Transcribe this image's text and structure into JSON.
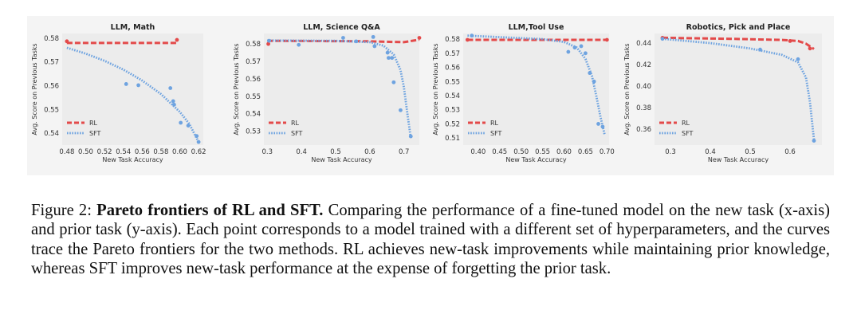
{
  "colors": {
    "rl": "#e34a4a",
    "sft": "#6ea3e0",
    "background": "#f4f4f4"
  },
  "caption": {
    "label": "Figure 2:",
    "bold_title": "Pareto frontiers of RL and SFT.",
    "text": "Comparing the performance of a fine-tuned model on the new task (x-axis) and prior task (y-axis). Each point corresponds to a model trained with a different set of hyperparameters, and the curves trace the Pareto frontiers for the two methods. RL achieves new-task improvements while maintaining prior knowledge, whereas SFT improves new-task performance at the expense of forgetting the prior task."
  },
  "chart_data": [
    {
      "type": "scatter",
      "title": "LLM, Math",
      "xlabel": "New Task Accuracy",
      "ylabel": "Avg. Score on Previous Tasks",
      "xlim": [
        0.475,
        0.625
      ],
      "ylim": [
        0.535,
        0.582
      ],
      "xticks": [
        "0.48",
        "0.50",
        "0.52",
        "0.54",
        "0.56",
        "0.58",
        "0.60",
        "0.62"
      ],
      "xtick_values": [
        0.48,
        0.5,
        0.52,
        0.54,
        0.56,
        0.58,
        0.6,
        0.62
      ],
      "yticks": [
        "0.58",
        "0.57",
        "0.56",
        "0.55",
        "0.54"
      ],
      "ytick_values": [
        0.58,
        0.57,
        0.56,
        0.55,
        0.54
      ],
      "legend": {
        "position": "lower-left",
        "entries": [
          "RL",
          "SFT"
        ]
      },
      "series": [
        {
          "name": "RL",
          "points": [
            [
              0.48,
              0.5787
            ],
            [
              0.597,
              0.5793
            ]
          ],
          "curve": [
            [
              0.48,
              0.578
            ],
            [
              0.597,
              0.578
            ]
          ]
        },
        {
          "name": "SFT",
          "points": [
            [
              0.543,
              0.5607
            ],
            [
              0.556,
              0.5602
            ],
            [
              0.59,
              0.559
            ],
            [
              0.593,
              0.5535
            ],
            [
              0.594,
              0.552
            ],
            [
              0.601,
              0.5444
            ],
            [
              0.609,
              0.5432
            ],
            [
              0.618,
              0.5388
            ],
            [
              0.62,
              0.5363
            ]
          ],
          "curve": [
            [
              0.48,
              0.576
            ],
            [
              0.5,
              0.5735
            ],
            [
              0.52,
              0.5705
            ],
            [
              0.54,
              0.5668
            ],
            [
              0.56,
              0.5622
            ],
            [
              0.58,
              0.5565
            ],
            [
              0.6,
              0.549
            ],
            [
              0.61,
              0.544
            ],
            [
              0.62,
              0.5363
            ]
          ]
        }
      ]
    },
    {
      "type": "scatter",
      "title": "LLM, Science Q&A",
      "xlabel": "New Task Accuracy",
      "ylabel": "Avg. Score on Previous Tasks",
      "xlim": [
        0.29,
        0.745
      ],
      "ylim": [
        0.522,
        0.586
      ],
      "xticks": [
        "0.3",
        "0.4",
        "0.5",
        "0.6",
        "0.7"
      ],
      "xtick_values": [
        0.3,
        0.4,
        0.5,
        0.6,
        0.7
      ],
      "yticks": [
        "0.58",
        "0.57",
        "0.56",
        "0.55",
        "0.54",
        "0.53"
      ],
      "ytick_values": [
        0.58,
        0.57,
        0.56,
        0.55,
        0.54,
        0.53
      ],
      "legend": {
        "position": "lower-left",
        "entries": [
          "RL",
          "SFT"
        ]
      },
      "series": [
        {
          "name": "RL",
          "points": [
            [
              0.303,
              0.58
            ],
            [
              0.745,
              0.5835
            ]
          ],
          "curve": [
            [
              0.3,
              0.5818
            ],
            [
              0.59,
              0.5815
            ],
            [
              0.7,
              0.581
            ],
            [
              0.745,
              0.5825
            ]
          ]
        },
        {
          "name": "SFT",
          "points": [
            [
              0.305,
              0.5818
            ],
            [
              0.392,
              0.5795
            ],
            [
              0.522,
              0.5835
            ],
            [
              0.56,
              0.5815
            ],
            [
              0.61,
              0.584
            ],
            [
              0.614,
              0.5787
            ],
            [
              0.652,
              0.575
            ],
            [
              0.655,
              0.572
            ],
            [
              0.665,
              0.572
            ],
            [
              0.67,
              0.558
            ],
            [
              0.69,
              0.542
            ],
            [
              0.72,
              0.527
            ]
          ],
          "curve": [
            [
              0.3,
              0.582
            ],
            [
              0.5,
              0.5818
            ],
            [
              0.6,
              0.581
            ],
            [
              0.64,
              0.579
            ],
            [
              0.67,
              0.574
            ],
            [
              0.69,
              0.565
            ],
            [
              0.7,
              0.555
            ],
            [
              0.71,
              0.54
            ],
            [
              0.72,
              0.526
            ]
          ]
        }
      ]
    },
    {
      "type": "scatter",
      "title": "LLM,Tool Use",
      "xlabel": "New Task Accuracy",
      "ylabel": "Avg. Score on Previous Tasks",
      "xlim": [
        0.365,
        0.705
      ],
      "ylim": [
        0.505,
        0.584
      ],
      "xticks": [
        "0.40",
        "0.45",
        "0.50",
        "0.55",
        "0.60",
        "0.65",
        "0.70"
      ],
      "xtick_values": [
        0.4,
        0.45,
        0.5,
        0.55,
        0.6,
        0.65,
        0.7
      ],
      "yticks": [
        "0.58",
        "0.57",
        "0.56",
        "0.55",
        "0.54",
        "0.53",
        "0.52",
        "0.51"
      ],
      "ytick_values": [
        0.58,
        0.57,
        0.56,
        0.55,
        0.54,
        0.53,
        0.52,
        0.51
      ],
      "legend": {
        "position": "lower-left",
        "entries": [
          "RL",
          "SFT"
        ]
      },
      "series": [
        {
          "name": "RL",
          "points": [
            [
              0.375,
              0.5795
            ],
            [
              0.7,
              0.5795
            ]
          ],
          "curve": [
            [
              0.375,
              0.5795
            ],
            [
              0.7,
              0.5795
            ]
          ]
        },
        {
          "name": "SFT",
          "points": [
            [
              0.385,
              0.5825
            ],
            [
              0.61,
              0.571
            ],
            [
              0.625,
              0.574
            ],
            [
              0.64,
              0.575
            ],
            [
              0.65,
              0.57
            ],
            [
              0.66,
              0.556
            ],
            [
              0.67,
              0.55
            ],
            [
              0.68,
              0.52
            ],
            [
              0.69,
              0.518
            ]
          ],
          "curve": [
            [
              0.375,
              0.5825
            ],
            [
              0.55,
              0.58
            ],
            [
              0.6,
              0.578
            ],
            [
              0.63,
              0.574
            ],
            [
              0.65,
              0.566
            ],
            [
              0.665,
              0.554
            ],
            [
              0.675,
              0.54
            ],
            [
              0.685,
              0.525
            ],
            [
              0.695,
              0.512
            ]
          ]
        }
      ]
    },
    {
      "type": "scatter",
      "title": "Robotics, Pick and Place",
      "xlabel": "New Task Accuracy",
      "ylabel": "Avg. Score on Previous Tasks",
      "xlim": [
        0.26,
        0.68
      ],
      "ylim": [
        0.345,
        0.449
      ],
      "xticks": [
        "0.3",
        "0.4",
        "0.5",
        "0.6"
      ],
      "xtick_values": [
        0.3,
        0.4,
        0.5,
        0.6
      ],
      "yticks": [
        "0.44",
        "0.42",
        "0.40",
        "0.38",
        "0.36"
      ],
      "ytick_values": [
        0.44,
        0.42,
        0.4,
        0.38,
        0.36
      ],
      "legend": {
        "position": "lower-left",
        "entries": [
          "RL",
          "SFT"
        ]
      },
      "series": [
        {
          "name": "RL",
          "points": [
            [
              0.28,
              0.445
            ],
            [
              0.6,
              0.442
            ],
            [
              0.65,
              0.435
            ]
          ],
          "curve": [
            [
              0.28,
              0.445
            ],
            [
              0.45,
              0.444
            ],
            [
              0.58,
              0.443
            ],
            [
              0.62,
              0.442
            ],
            [
              0.64,
              0.4395
            ],
            [
              0.66,
              0.4345
            ]
          ]
        },
        {
          "name": "SFT",
          "points": [
            [
              0.28,
              0.444
            ],
            [
              0.525,
              0.434
            ],
            [
              0.62,
              0.425
            ],
            [
              0.66,
              0.349
            ]
          ],
          "curve": [
            [
              0.28,
              0.444
            ],
            [
              0.4,
              0.44
            ],
            [
              0.5,
              0.435
            ],
            [
              0.58,
              0.429
            ],
            [
              0.62,
              0.422
            ],
            [
              0.64,
              0.408
            ],
            [
              0.65,
              0.385
            ],
            [
              0.66,
              0.35
            ]
          ]
        }
      ]
    }
  ]
}
